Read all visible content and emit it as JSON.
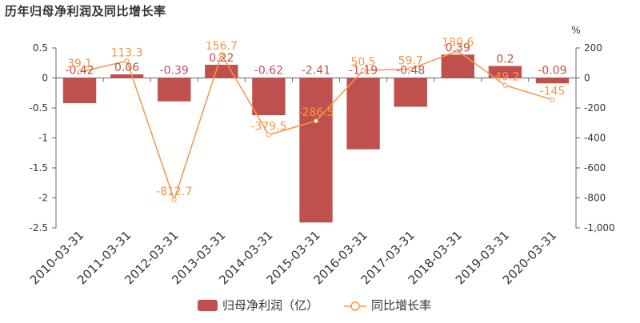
{
  "chart_data": {
    "type": "bar",
    "title": "历年归母净利润及同比增长率",
    "categories": [
      "2010-03-31",
      "2011-03-31",
      "2012-03-31",
      "2013-03-31",
      "2014-03-31",
      "2015-03-31",
      "2016-03-31",
      "2017-03-31",
      "2018-03-31",
      "2019-03-31",
      "2020-03-31"
    ],
    "series": [
      {
        "name": "归母净利润（亿）",
        "type": "bar",
        "axis": "left",
        "color": "#c0504d",
        "values": [
          -0.42,
          0.06,
          -0.39,
          0.22,
          -0.62,
          -2.41,
          -1.19,
          -0.48,
          0.39,
          0.2,
          -0.09
        ],
        "labels": [
          "-0.42",
          "0.06",
          "-0.39",
          "0.22",
          "-0.62",
          "-2.41",
          "-1.19",
          "-0.48",
          "0.39",
          "0.2",
          "-0.09"
        ]
      },
      {
        "name": "同比增长率",
        "type": "line",
        "axis": "right",
        "color": "#f79646",
        "values": [
          39.1,
          113.3,
          -812.7,
          156.7,
          -379.5,
          -286.5,
          50.5,
          59.7,
          180.6,
          -49.2,
          -145
        ],
        "labels": [
          "39.1",
          "113.3",
          "-812.7",
          "156.7",
          "-379.5",
          "-286.5",
          "50.5",
          "59.7",
          "180.6",
          "-49.2",
          "-145"
        ]
      }
    ],
    "y_left": {
      "ylim": [
        -2.5,
        0.5
      ],
      "ticks": [
        0.5,
        0,
        -0.5,
        -1,
        -1.5,
        -2,
        -2.5
      ],
      "tick_labels": [
        "0.5",
        "0",
        "-0.5",
        "-1",
        "-1.5",
        "-2",
        "-2.5"
      ]
    },
    "y_right": {
      "ylim": [
        -1000,
        200
      ],
      "ticks": [
        200,
        0,
        -200,
        -400,
        -600,
        -800,
        -1000
      ],
      "tick_labels": [
        "200",
        "0",
        "-200",
        "-400",
        "-600",
        "-800",
        "-1,000"
      ],
      "unit": "%"
    },
    "legend": {
      "position": "bottom-center",
      "items": [
        "归母净利润（亿）",
        "同比增长率"
      ]
    },
    "grid": false
  }
}
